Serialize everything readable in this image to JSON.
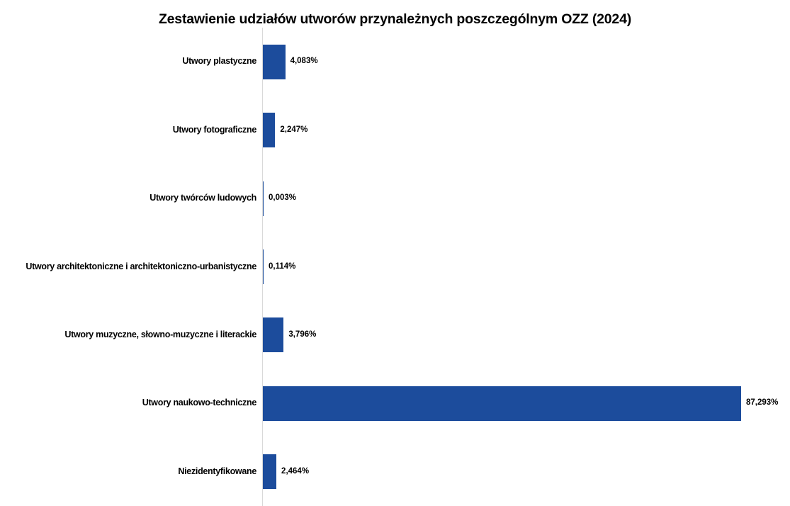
{
  "title": "Zestawienie udziałów utworów przynależnych poszczególnym OZZ (2024)",
  "colors": {
    "bar": "#1c4c9c",
    "axis_line": "#d9d9d9",
    "text": "#000000",
    "background": "#ffffff"
  },
  "chart_data": {
    "type": "bar",
    "orientation": "horizontal",
    "title": "Zestawienie udziałów utworów przynależnych poszczególnym OZZ (2024)",
    "categories": [
      "Utwory plastyczne",
      "Utwory fotograficzne",
      "Utwory twórców ludowych",
      "Utwory architektoniczne i architektoniczno-urbanistyczne",
      "Utwory muzyczne, słowno-muzyczne i literackie",
      "Utwory naukowo-techniczne",
      "Niezidentyfikowane"
    ],
    "values": [
      4.083,
      2.247,
      0.003,
      0.114,
      3.796,
      87.293,
      2.464
    ],
    "value_labels": [
      "4,083%",
      "2,247%",
      "0,003%",
      "0,114%",
      "3,796%",
      "87,293%",
      "2,464%"
    ],
    "unit": "%",
    "xlim": [
      0,
      96
    ],
    "grid": false,
    "legend": false,
    "data_labels": true
  }
}
